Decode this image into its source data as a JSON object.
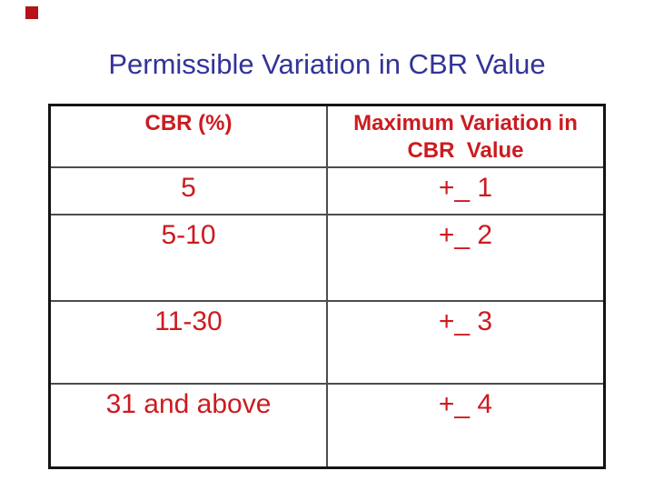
{
  "slide": {
    "title": "Permissible Variation in CBR Value",
    "colors": {
      "title_blue": "#333399",
      "table_red": "#cc1b20",
      "accent_red": "#b5121b",
      "border_black": "#141414",
      "grid_gray": "#4d4d4d"
    },
    "table": {
      "columns": [
        "CBR (%)",
        "Maximum Variation in\nCBR  Value"
      ],
      "rows": [
        [
          "5",
          "+_ 1"
        ],
        [
          "5-10",
          "+_ 2"
        ],
        [
          "11-30",
          "+_ 3"
        ],
        [
          "31 and above",
          "+_ 4"
        ]
      ]
    }
  }
}
